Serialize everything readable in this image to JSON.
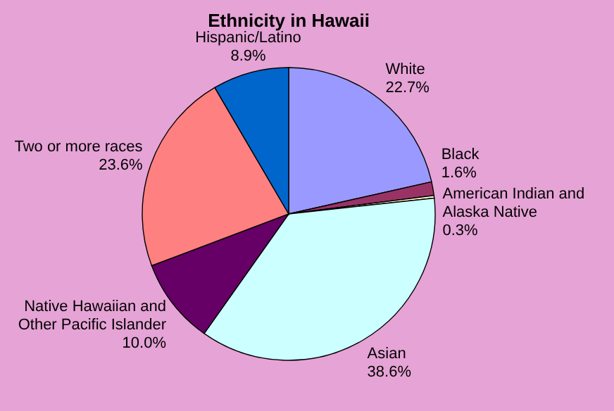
{
  "chart_data": {
    "type": "pie",
    "title": "Ethnicity in Hawaii",
    "categories": [
      "White",
      "Black",
      "American Indian and Alaska Native",
      "Asian",
      "Native Hawaiian and Other Pacific Islander",
      "Two or more races",
      "Hispanic/Latino"
    ],
    "values": [
      22.7,
      1.6,
      0.3,
      38.6,
      10.0,
      23.6,
      8.9
    ],
    "value_labels": [
      "22.7%",
      "1.6%",
      "0.3%",
      "38.6%",
      "10.0%",
      "23.6%",
      "8.9%"
    ],
    "colors": [
      "#9999ff",
      "#993366",
      "#ffffcc",
      "#ccffff",
      "#660066",
      "#ff8080",
      "#0066cc"
    ]
  }
}
